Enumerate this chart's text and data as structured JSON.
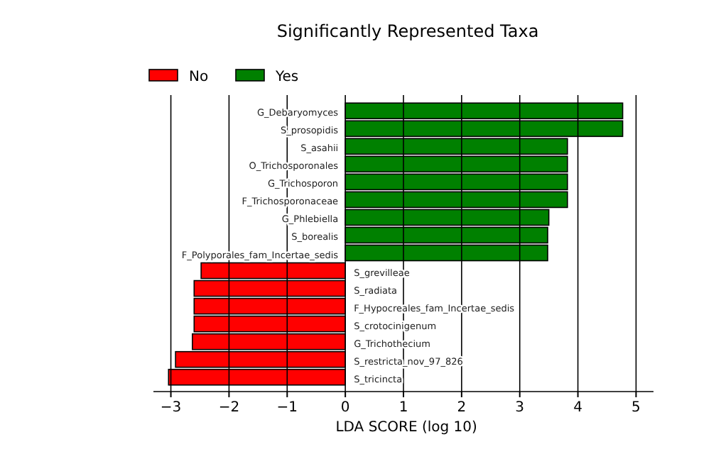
{
  "chart_data": {
    "type": "bar",
    "orientation": "horizontal",
    "title": "Significantly Represented Taxa",
    "xlabel": "LDA SCORE (log 10)",
    "categories": [
      "G_Debaryomyces",
      "S_prosopidis",
      "S_asahii",
      "O_Trichosporonales",
      "G_Trichosporon",
      "F_Trichosporonaceae",
      "G_Phlebiella",
      "S_borealis",
      "F_Polyporales_fam_Incertae_sedis",
      "S_grevilleae",
      "S_radiata",
      "F_Hypocreales_fam_Incertae_sedis",
      "S_crotocinigenum",
      "G_Trichothecium",
      "S_restricta_nov_97_826",
      "S_tricincta"
    ],
    "series": [
      {
        "name": "No",
        "color": "#ff0000",
        "values": [
          null,
          null,
          null,
          null,
          null,
          null,
          null,
          null,
          null,
          -2.48,
          -2.6,
          -2.6,
          -2.6,
          -2.63,
          -2.92,
          -3.04
        ]
      },
      {
        "name": "Yes",
        "color": "#008000",
        "values": [
          4.77,
          4.77,
          3.82,
          3.82,
          3.82,
          3.82,
          3.5,
          3.48,
          3.48,
          null,
          null,
          null,
          null,
          null,
          null,
          null
        ]
      }
    ],
    "xlim": [
      -3.3,
      5.3
    ],
    "xticks": [
      {
        "value": -3,
        "label": "−3"
      },
      {
        "value": -2,
        "label": "−2"
      },
      {
        "value": -1,
        "label": "−1"
      },
      0,
      1,
      2,
      3,
      4,
      5
    ],
    "grid": "x",
    "legend": "top left"
  }
}
